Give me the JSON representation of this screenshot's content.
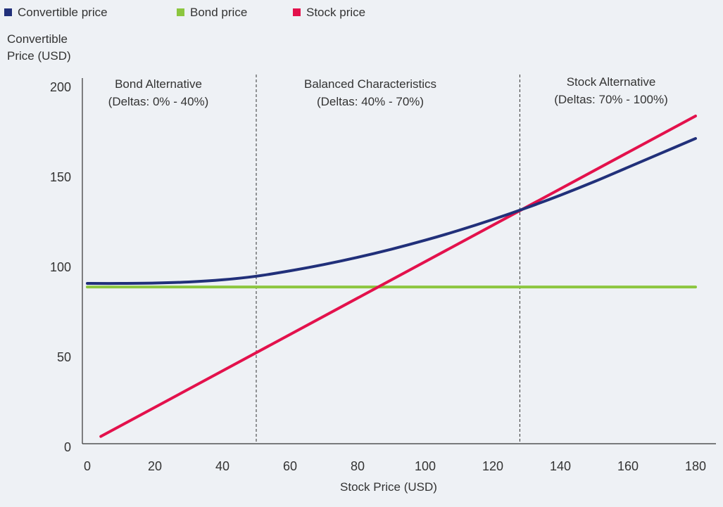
{
  "chart_data": {
    "type": "line",
    "xlabel": "Stock Price (USD)",
    "ylabel": [
      "Convertible",
      "Price (USD)"
    ],
    "xlim": [
      0,
      180
    ],
    "ylim": [
      0,
      200
    ],
    "x_ticks": [
      0,
      20,
      40,
      60,
      80,
      100,
      120,
      140,
      160,
      180
    ],
    "y_ticks": [
      0,
      50,
      100,
      150,
      200
    ],
    "grid": false,
    "legend_position": "top-left",
    "series": [
      {
        "name": "Convertible price",
        "color": "#21307a",
        "x": [
          0,
          10,
          20,
          30,
          40,
          50,
          60,
          70,
          80,
          90,
          100,
          110,
          120,
          130,
          140,
          150,
          160,
          170,
          180
        ],
        "y": [
          91,
          91,
          91.2,
          91.8,
          93,
          95,
          98,
          101.5,
          105.5,
          110,
          115,
          120.5,
          126.5,
          133,
          140,
          147.5,
          155.5,
          163.5,
          171.5
        ]
      },
      {
        "name": "Bond price",
        "color": "#8cc63f",
        "x": [
          0,
          180
        ],
        "y": [
          89,
          89
        ]
      },
      {
        "name": "Stock price",
        "color": "#e3114c",
        "x": [
          4,
          180
        ],
        "y": [
          6,
          184
        ]
      }
    ],
    "dividers_x": [
      50,
      128
    ],
    "regions": [
      {
        "title": "Bond Alternative",
        "subtitle": "(Deltas: 0% - 40%)"
      },
      {
        "title": "Balanced Characteristics",
        "subtitle": "(Deltas: 40% - 70%)"
      },
      {
        "title": "Stock Alternative",
        "subtitle": "(Deltas: 70% - 100%)"
      }
    ]
  }
}
